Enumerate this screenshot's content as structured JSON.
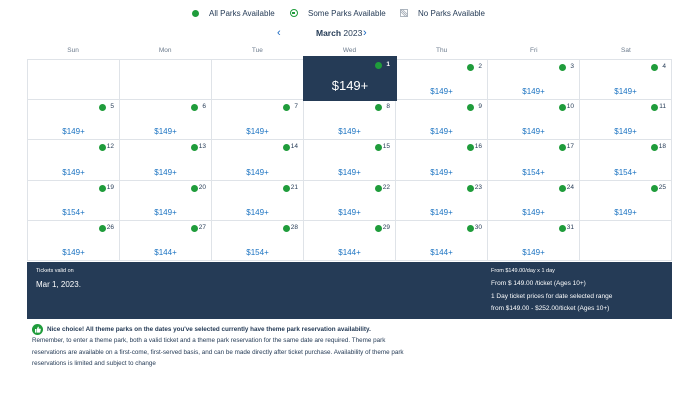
{
  "legend": {
    "all_label": "All Parks Available",
    "some_label": "Some Parks Available",
    "none_label": "No Parks Available",
    "color_available": "#1f9c3b"
  },
  "nav": {
    "prev_icon": "chevron-left-icon",
    "next_icon": "chevron-right-icon",
    "month": "March",
    "year": "2023"
  },
  "weekdays": [
    "Sun",
    "Mon",
    "Tue",
    "Wed",
    "Thu",
    "Fri",
    "Sat"
  ],
  "days": [
    {
      "day": "",
      "price": ""
    },
    {
      "day": "",
      "price": ""
    },
    {
      "day": "",
      "price": ""
    },
    {
      "day": "1",
      "price": "$149+",
      "selected": true
    },
    {
      "day": "2",
      "price": "$149+"
    },
    {
      "day": "3",
      "price": "$149+"
    },
    {
      "day": "4",
      "price": "$149+"
    },
    {
      "day": "5",
      "price": "$149+"
    },
    {
      "day": "6",
      "price": "$149+"
    },
    {
      "day": "7",
      "price": "$149+"
    },
    {
      "day": "8",
      "price": "$149+"
    },
    {
      "day": "9",
      "price": "$149+"
    },
    {
      "day": "10",
      "price": "$149+"
    },
    {
      "day": "11",
      "price": "$149+"
    },
    {
      "day": "12",
      "price": "$149+"
    },
    {
      "day": "13",
      "price": "$149+"
    },
    {
      "day": "14",
      "price": "$149+"
    },
    {
      "day": "15",
      "price": "$149+"
    },
    {
      "day": "16",
      "price": "$149+"
    },
    {
      "day": "17",
      "price": "$154+"
    },
    {
      "day": "18",
      "price": "$154+"
    },
    {
      "day": "19",
      "price": "$154+"
    },
    {
      "day": "20",
      "price": "$149+"
    },
    {
      "day": "21",
      "price": "$149+"
    },
    {
      "day": "22",
      "price": "$149+"
    },
    {
      "day": "23",
      "price": "$149+"
    },
    {
      "day": "24",
      "price": "$149+"
    },
    {
      "day": "25",
      "price": "$149+"
    },
    {
      "day": "26",
      "price": "$149+"
    },
    {
      "day": "27",
      "price": "$144+"
    },
    {
      "day": "28",
      "price": "$154+"
    },
    {
      "day": "29",
      "price": "$144+"
    },
    {
      "day": "30",
      "price": "$144+"
    },
    {
      "day": "31",
      "price": "$149+"
    },
    {
      "day": "",
      "price": ""
    }
  ],
  "summary": {
    "valid_label": "Tickets valid on",
    "valid_date": "Mar 1, 2023.",
    "rate_line": "From $149.00/day x 1 day",
    "price_line": "From $ 149.00 /ticket (Ages 10+)",
    "range_label": "1 Day ticket prices for date selected range",
    "range_line": "from $149.00 - $252.00/ticket (Ages 10+)"
  },
  "notice": {
    "icon": "thumbs-up-icon",
    "headline": "Nice choice! All theme parks on the dates you've selected currently have theme park reservation availability.",
    "line1": "Remember, to enter a theme park, both a valid ticket and a theme park reservation for the same date are required. Theme park",
    "line2": "reservations are available on a first-come, first-served basis, and can be made directly after ticket purchase. Availability of theme park",
    "line3": "reservations is limited and subject to change"
  }
}
